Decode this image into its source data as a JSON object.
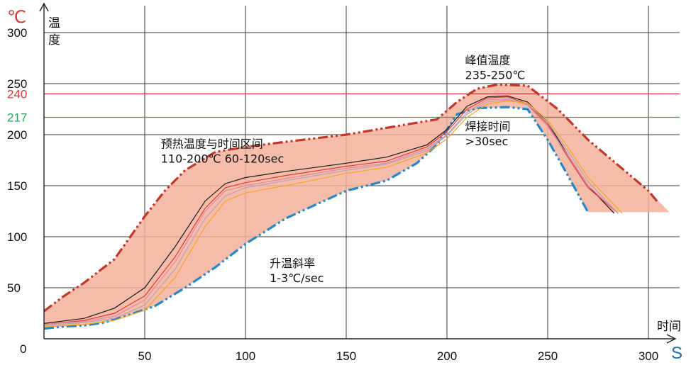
{
  "chart_data": {
    "type": "line",
    "xlabel": "时间",
    "x_unit": "S",
    "ylabel": "温度",
    "y_unit": "℃",
    "origin_label": "0",
    "xlim": [
      0,
      320
    ],
    "ylim": [
      0,
      310
    ],
    "x_ticks": [
      50,
      100,
      150,
      200,
      250,
      300
    ],
    "y_ticks": [
      50,
      100,
      150,
      200,
      250,
      300
    ],
    "grid": true,
    "reference_lines": [
      {
        "value": 240,
        "label": "240",
        "color": "#d33c3c"
      },
      {
        "value": 217,
        "label": "217",
        "color": "#26a65b"
      }
    ],
    "window_band": {
      "color": "#f4b29c",
      "upper": [
        [
          0,
          27
        ],
        [
          10,
          42
        ],
        [
          20,
          55
        ],
        [
          35,
          78
        ],
        [
          50,
          120
        ],
        [
          60,
          145
        ],
        [
          70,
          165
        ],
        [
          85,
          183
        ],
        [
          100,
          188
        ],
        [
          120,
          193
        ],
        [
          150,
          200
        ],
        [
          180,
          210
        ],
        [
          195,
          215
        ],
        [
          205,
          232
        ],
        [
          215,
          245
        ],
        [
          225,
          249
        ],
        [
          240,
          248
        ],
        [
          255,
          225
        ],
        [
          270,
          195
        ],
        [
          285,
          170
        ],
        [
          300,
          145
        ],
        [
          310,
          125
        ]
      ],
      "lower": [
        [
          0,
          10
        ],
        [
          10,
          12
        ],
        [
          20,
          13
        ],
        [
          30,
          16
        ],
        [
          40,
          22
        ],
        [
          55,
          32
        ],
        [
          70,
          50
        ],
        [
          85,
          70
        ],
        [
          100,
          93
        ],
        [
          120,
          118
        ],
        [
          150,
          145
        ],
        [
          170,
          155
        ],
        [
          185,
          172
        ],
        [
          195,
          190
        ],
        [
          205,
          220
        ],
        [
          215,
          226
        ],
        [
          230,
          227
        ],
        [
          240,
          225
        ],
        [
          250,
          195
        ],
        [
          260,
          160
        ],
        [
          270,
          124
        ],
        [
          310,
          124
        ]
      ]
    },
    "series": [
      {
        "color": "#c0392b",
        "style": "dash-dot-dot",
        "points": [
          [
            0,
            27
          ],
          [
            10,
            42
          ],
          [
            20,
            55
          ],
          [
            35,
            78
          ],
          [
            50,
            120
          ],
          [
            60,
            145
          ],
          [
            70,
            165
          ],
          [
            85,
            183
          ],
          [
            100,
            188
          ],
          [
            120,
            193
          ],
          [
            150,
            200
          ],
          [
            180,
            210
          ],
          [
            195,
            215
          ],
          [
            205,
            232
          ],
          [
            215,
            245
          ],
          [
            225,
            249
          ],
          [
            240,
            248
          ],
          [
            255,
            225
          ],
          [
            270,
            195
          ],
          [
            285,
            170
          ],
          [
            300,
            145
          ],
          [
            305,
            133
          ]
        ]
      },
      {
        "color": "#2788c8",
        "style": "dash-dot-dot",
        "points": [
          [
            0,
            10
          ],
          [
            10,
            12
          ],
          [
            20,
            13
          ],
          [
            30,
            16
          ],
          [
            40,
            22
          ],
          [
            55,
            32
          ],
          [
            70,
            50
          ],
          [
            85,
            70
          ],
          [
            100,
            93
          ],
          [
            120,
            118
          ],
          [
            150,
            145
          ],
          [
            170,
            155
          ],
          [
            185,
            172
          ],
          [
            195,
            190
          ],
          [
            205,
            220
          ],
          [
            215,
            226
          ],
          [
            230,
            227
          ],
          [
            240,
            225
          ],
          [
            250,
            195
          ],
          [
            260,
            160
          ],
          [
            270,
            124
          ]
        ]
      },
      {
        "color": "#1a1a1a",
        "style": "solid",
        "points": [
          [
            0,
            15
          ],
          [
            20,
            20
          ],
          [
            35,
            30
          ],
          [
            50,
            50
          ],
          [
            65,
            90
          ],
          [
            80,
            135
          ],
          [
            90,
            152
          ],
          [
            100,
            158
          ],
          [
            120,
            164
          ],
          [
            150,
            172
          ],
          [
            170,
            178
          ],
          [
            190,
            190
          ],
          [
            200,
            205
          ],
          [
            210,
            228
          ],
          [
            220,
            237
          ],
          [
            230,
            238
          ],
          [
            240,
            232
          ],
          [
            250,
            212
          ],
          [
            260,
            180
          ],
          [
            270,
            150
          ],
          [
            283,
            123
          ]
        ]
      },
      {
        "color": "#e53935",
        "style": "solid",
        "points": [
          [
            0,
            14
          ],
          [
            20,
            18
          ],
          [
            35,
            25
          ],
          [
            50,
            42
          ],
          [
            65,
            80
          ],
          [
            80,
            128
          ],
          [
            90,
            148
          ],
          [
            100,
            153
          ],
          [
            120,
            160
          ],
          [
            150,
            169
          ],
          [
            170,
            174
          ],
          [
            190,
            188
          ],
          [
            200,
            203
          ],
          [
            210,
            225
          ],
          [
            220,
            236
          ],
          [
            230,
            237
          ],
          [
            240,
            230
          ],
          [
            250,
            210
          ],
          [
            260,
            178
          ],
          [
            270,
            148
          ],
          [
            285,
            123
          ]
        ]
      },
      {
        "color": "#e08aa0",
        "style": "solid",
        "points": [
          [
            0,
            14
          ],
          [
            20,
            17
          ],
          [
            35,
            22
          ],
          [
            50,
            38
          ],
          [
            65,
            75
          ],
          [
            80,
            125
          ],
          [
            90,
            145
          ],
          [
            100,
            150
          ],
          [
            120,
            157
          ],
          [
            150,
            167
          ],
          [
            170,
            172
          ],
          [
            190,
            186
          ],
          [
            200,
            200
          ],
          [
            210,
            222
          ],
          [
            220,
            234
          ],
          [
            230,
            235
          ],
          [
            240,
            229
          ],
          [
            250,
            208
          ],
          [
            260,
            180
          ],
          [
            270,
            150
          ],
          [
            285,
            123
          ]
        ]
      },
      {
        "color": "#b9a3b3",
        "style": "solid",
        "points": [
          [
            0,
            13
          ],
          [
            20,
            16
          ],
          [
            35,
            20
          ],
          [
            50,
            33
          ],
          [
            65,
            68
          ],
          [
            80,
            118
          ],
          [
            90,
            140
          ],
          [
            100,
            148
          ],
          [
            120,
            155
          ],
          [
            150,
            165
          ],
          [
            170,
            171
          ],
          [
            190,
            184
          ],
          [
            200,
            199
          ],
          [
            210,
            220
          ],
          [
            220,
            232
          ],
          [
            230,
            234
          ],
          [
            240,
            230
          ],
          [
            250,
            212
          ],
          [
            260,
            184
          ],
          [
            270,
            154
          ],
          [
            285,
            123
          ]
        ]
      },
      {
        "color": "#f5a623",
        "style": "solid",
        "points": [
          [
            0,
            12
          ],
          [
            20,
            14
          ],
          [
            35,
            18
          ],
          [
            50,
            28
          ],
          [
            65,
            60
          ],
          [
            80,
            110
          ],
          [
            90,
            135
          ],
          [
            100,
            143
          ],
          [
            120,
            150
          ],
          [
            150,
            162
          ],
          [
            170,
            168
          ],
          [
            190,
            182
          ],
          [
            200,
            196
          ],
          [
            210,
            217
          ],
          [
            220,
            230
          ],
          [
            230,
            233
          ],
          [
            240,
            231
          ],
          [
            250,
            214
          ],
          [
            260,
            188
          ],
          [
            270,
            158
          ],
          [
            287,
            123
          ]
        ]
      }
    ],
    "annotations": [
      {
        "lines": [
          "预热温度与时间区间",
          "110-200℃ 60-120sec"
        ],
        "x": 58,
        "y": 187
      },
      {
        "lines": [
          "峰值温度",
          "235-250℃"
        ],
        "x": 209,
        "y": 269
      },
      {
        "lines": [
          "焊接时间",
          ">30sec"
        ],
        "x": 209,
        "y": 204
      },
      {
        "lines": [
          "升温斜率",
          "1-3℃/sec"
        ],
        "x": 112,
        "y": 70
      }
    ]
  }
}
